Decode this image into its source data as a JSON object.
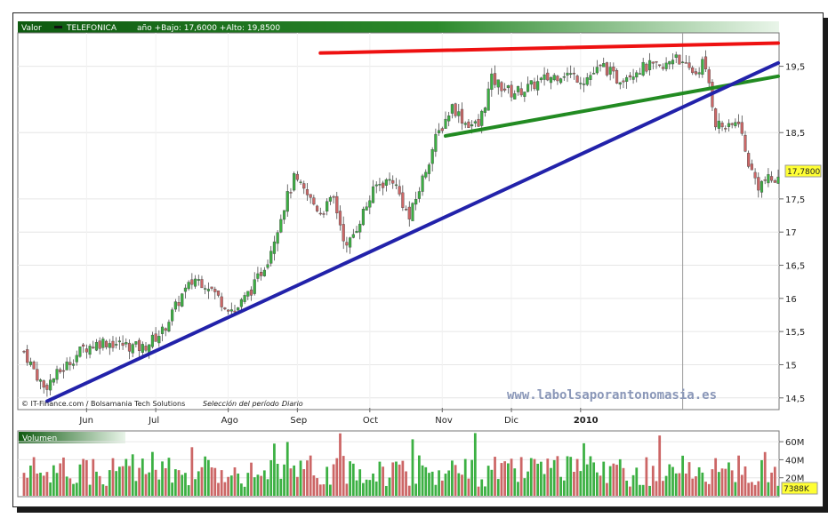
{
  "header": {
    "valor_label": "Valor",
    "ticker": "TELEFONICA",
    "range_text": "año +Bajo: 17,6000 +Alto: 19,8500"
  },
  "footer": {
    "credits": "© IT-Finance.com / Bolsamania Tech Solutions",
    "period_label": "Selección del período :",
    "period_value": "Diario",
    "watermark": "www.labolsaporantonomasia.es"
  },
  "volume_panel": {
    "label": "Volumen",
    "last_value": "7388K"
  },
  "colors": {
    "header_green": "#1f7a1f",
    "up_candle": "#3cb043",
    "down_candle": "#cc6666",
    "resistance": "#ee1111",
    "support_short": "#228b22",
    "trend_long": "#2222aa"
  },
  "chart_data": {
    "type": "candlestick",
    "series_name": "TELEFONICA",
    "x_tick_labels": [
      "Jun",
      "Jul",
      "Ago",
      "Sep",
      "Oct",
      "Nov",
      "Dic",
      "2010"
    ],
    "y_tick_labels": [
      "19,5",
      "18,5",
      "17,5",
      "17",
      "16,5",
      "16",
      "15,5",
      "15",
      "14,5"
    ],
    "ylim": [
      14.35,
      19.95
    ],
    "last_price_label": "17,7800",
    "close_path": [
      [
        0,
        15.2
      ],
      [
        6,
        14.65
      ],
      [
        12,
        14.95
      ],
      [
        18,
        15.25
      ],
      [
        24,
        15.35
      ],
      [
        30,
        15.3
      ],
      [
        36,
        15.25
      ],
      [
        42,
        15.5
      ],
      [
        48,
        16.05
      ],
      [
        52,
        16.3
      ],
      [
        56,
        16.2
      ],
      [
        60,
        15.95
      ],
      [
        64,
        15.8
      ],
      [
        70,
        16.2
      ],
      [
        74,
        16.6
      ],
      [
        79,
        17.4
      ],
      [
        82,
        17.8
      ],
      [
        86,
        17.55
      ],
      [
        90,
        17.3
      ],
      [
        94,
        17.5
      ],
      [
        98,
        16.75
      ],
      [
        103,
        17.3
      ],
      [
        107,
        17.7
      ],
      [
        112,
        17.8
      ],
      [
        117,
        17.2
      ],
      [
        121,
        17.8
      ],
      [
        125,
        18.4
      ],
      [
        130,
        18.9
      ],
      [
        134,
        18.65
      ],
      [
        138,
        18.6
      ],
      [
        142,
        19.3
      ],
      [
        148,
        19.1
      ],
      [
        152,
        19.15
      ],
      [
        158,
        19.3
      ],
      [
        164,
        19.4
      ],
      [
        170,
        19.3
      ],
      [
        176,
        19.5
      ],
      [
        180,
        19.3
      ],
      [
        186,
        19.45
      ],
      [
        190,
        19.5
      ],
      [
        194,
        19.45
      ],
      [
        198,
        19.7
      ],
      [
        200,
        19.5
      ],
      [
        204,
        19.4
      ],
      [
        206,
        19.55
      ],
      [
        208,
        19.25
      ],
      [
        210,
        18.65
      ],
      [
        214,
        18.55
      ],
      [
        217,
        18.7
      ],
      [
        219,
        18.2
      ],
      [
        221,
        17.9
      ],
      [
        223,
        17.7
      ],
      [
        225,
        17.78
      ]
    ],
    "volume": {
      "ytick_labels": [
        "60M",
        "40M",
        "20M"
      ],
      "ylim": [
        0,
        70
      ],
      "unit": "M"
    },
    "trendlines": [
      {
        "name": "resistance",
        "color": "#ee1111",
        "from": [
          90,
          19.7
        ],
        "to": [
          229,
          19.85
        ]
      },
      {
        "name": "support-short",
        "color": "#228b22",
        "from": [
          128,
          18.45
        ],
        "to": [
          229,
          19.35
        ]
      },
      {
        "name": "trend-long",
        "color": "#2222aa",
        "from": [
          7,
          14.45
        ],
        "to": [
          229,
          19.55
        ]
      }
    ],
    "cursor_index": 200,
    "n_days": 230
  }
}
